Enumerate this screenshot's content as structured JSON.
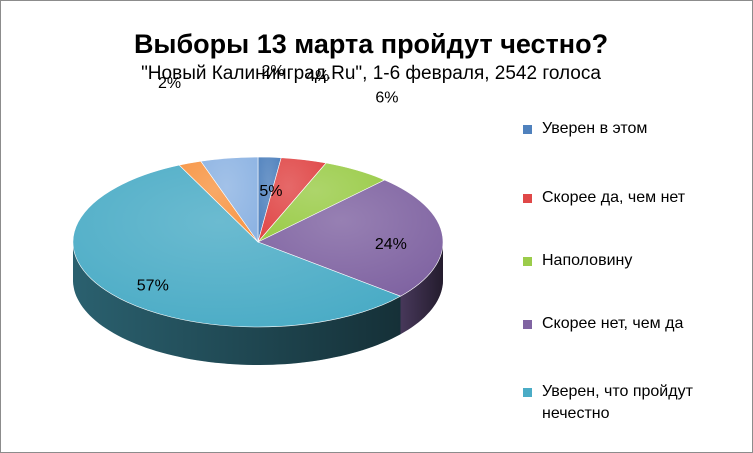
{
  "chart_data": {
    "type": "pie",
    "title": "Выборы 13 марта пройдут честно?",
    "subtitle": "\"Новый Калининград.Ru\", 1-6 февраля, 2542 голоса",
    "legend_position": "right",
    "three_d": true,
    "slices": [
      {
        "label": "Уверен в этом",
        "value": 2,
        "display": "2%",
        "color": "#4f81bd"
      },
      {
        "label": "Скорее да, чем нет",
        "value": 4,
        "display": "4%",
        "color": "#e04848"
      },
      {
        "label": "Наполовину",
        "value": 6,
        "display": "6%",
        "color": "#9bcc4a"
      },
      {
        "label": "Скорее нет, чем да",
        "value": 24,
        "display": "24%",
        "color": "#8064a2"
      },
      {
        "label": "Уверен, что пройдут нечестно",
        "value": 57,
        "display": "57%",
        "color": "#4bacc6"
      },
      {
        "label": "",
        "value": 2,
        "display": "2%",
        "color": "#f79646"
      },
      {
        "label": "",
        "value": 5,
        "display": "5%",
        "color": "#8eb4e3"
      }
    ]
  }
}
